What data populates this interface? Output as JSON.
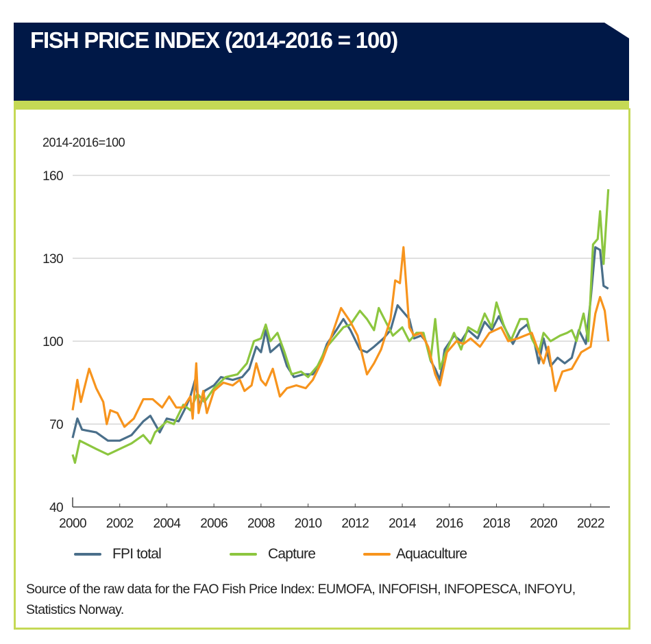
{
  "header": {
    "title": "FISH PRICE INDEX (2014-2016 = 100)"
  },
  "colors": {
    "header_bg": "#001847",
    "accent_green": "#c5d955"
  },
  "chart_data": {
    "type": "line",
    "title": "FISH PRICE INDEX (2014-2016 = 100)",
    "ylabel": "2014-2016=100",
    "xlabel": "",
    "xlim": [
      2000,
      2022.75
    ],
    "ylim": [
      40,
      160
    ],
    "yticks": [
      "160",
      "130",
      "100",
      "70",
      "40"
    ],
    "xticks": [
      "2000",
      "2002",
      "2004",
      "2006",
      "2008",
      "2010",
      "2012",
      "2014",
      "2016",
      "2018",
      "2020",
      "2022"
    ],
    "grid": true,
    "legend": "bottom",
    "series": [
      {
        "name": "FPI total",
        "color": "#4a6f8a",
        "points": [
          [
            2000,
            65
          ],
          [
            2000.2,
            72
          ],
          [
            2000.4,
            68
          ],
          [
            2001,
            67
          ],
          [
            2001.5,
            64
          ],
          [
            2002,
            64
          ],
          [
            2002.5,
            66
          ],
          [
            2003,
            71
          ],
          [
            2003.3,
            73
          ],
          [
            2003.7,
            67
          ],
          [
            2004,
            72
          ],
          [
            2004.5,
            71
          ],
          [
            2004.8,
            76
          ],
          [
            2005,
            80
          ],
          [
            2005.2,
            86
          ],
          [
            2005.4,
            76
          ],
          [
            2005.6,
            82
          ],
          [
            2006,
            84
          ],
          [
            2006.3,
            87
          ],
          [
            2006.8,
            86
          ],
          [
            2007.2,
            87
          ],
          [
            2007.5,
            90
          ],
          [
            2007.8,
            98
          ],
          [
            2008,
            96
          ],
          [
            2008.2,
            104
          ],
          [
            2008.4,
            96
          ],
          [
            2008.8,
            99
          ],
          [
            2009.1,
            91
          ],
          [
            2009.4,
            87
          ],
          [
            2009.8,
            88
          ],
          [
            2010.2,
            88
          ],
          [
            2010.5,
            92
          ],
          [
            2010.8,
            99
          ],
          [
            2011.2,
            104
          ],
          [
            2011.5,
            108
          ],
          [
            2011.8,
            104
          ],
          [
            2012.2,
            97
          ],
          [
            2012.5,
            96
          ],
          [
            2012.8,
            98
          ],
          [
            2013.2,
            101
          ],
          [
            2013.5,
            104
          ],
          [
            2013.8,
            113
          ],
          [
            2014,
            111
          ],
          [
            2014.3,
            108
          ],
          [
            2014.5,
            101
          ],
          [
            2014.8,
            102
          ],
          [
            2015,
            100
          ],
          [
            2015.2,
            93
          ],
          [
            2015.4,
            90
          ],
          [
            2015.6,
            86
          ],
          [
            2015.8,
            97
          ],
          [
            2016.2,
            102
          ],
          [
            2016.5,
            100
          ],
          [
            2016.8,
            104
          ],
          [
            2017.2,
            101
          ],
          [
            2017.5,
            107
          ],
          [
            2017.8,
            104
          ],
          [
            2018.1,
            109
          ],
          [
            2018.4,
            104
          ],
          [
            2018.7,
            99
          ],
          [
            2019,
            104
          ],
          [
            2019.3,
            106
          ],
          [
            2019.6,
            100
          ],
          [
            2019.8,
            92
          ],
          [
            2020,
            101
          ],
          [
            2020.3,
            91
          ],
          [
            2020.6,
            94
          ],
          [
            2020.9,
            92
          ],
          [
            2021.2,
            94
          ],
          [
            2021.5,
            104
          ],
          [
            2021.8,
            99
          ],
          [
            2022,
            115
          ],
          [
            2022.2,
            134
          ],
          [
            2022.4,
            133
          ],
          [
            2022.55,
            120
          ],
          [
            2022.75,
            119
          ]
        ]
      },
      {
        "name": "Capture",
        "color": "#8cc63f",
        "points": [
          [
            2000,
            59
          ],
          [
            2000.1,
            56
          ],
          [
            2000.3,
            64
          ],
          [
            2001,
            61
          ],
          [
            2001.5,
            59
          ],
          [
            2002,
            61
          ],
          [
            2002.5,
            63
          ],
          [
            2003,
            66
          ],
          [
            2003.3,
            63
          ],
          [
            2003.5,
            67
          ],
          [
            2004,
            71
          ],
          [
            2004.3,
            70
          ],
          [
            2004.7,
            77
          ],
          [
            2005,
            75
          ],
          [
            2005.3,
            81
          ],
          [
            2005.6,
            78
          ],
          [
            2006,
            83
          ],
          [
            2006.5,
            87
          ],
          [
            2007,
            88
          ],
          [
            2007.4,
            92
          ],
          [
            2007.7,
            100
          ],
          [
            2008,
            101
          ],
          [
            2008.2,
            106
          ],
          [
            2008.4,
            100
          ],
          [
            2008.7,
            103
          ],
          [
            2009,
            96
          ],
          [
            2009.3,
            88
          ],
          [
            2009.7,
            89
          ],
          [
            2010,
            87
          ],
          [
            2010.4,
            91
          ],
          [
            2010.8,
            98
          ],
          [
            2011.2,
            102
          ],
          [
            2011.5,
            105
          ],
          [
            2011.8,
            106
          ],
          [
            2012.2,
            111
          ],
          [
            2012.5,
            108
          ],
          [
            2012.8,
            104
          ],
          [
            2013,
            112
          ],
          [
            2013.3,
            107
          ],
          [
            2013.6,
            102
          ],
          [
            2014,
            105
          ],
          [
            2014.3,
            100
          ],
          [
            2014.6,
            103
          ],
          [
            2014.9,
            103
          ],
          [
            2015.2,
            93
          ],
          [
            2015.4,
            108
          ],
          [
            2015.6,
            90
          ],
          [
            2015.8,
            95
          ],
          [
            2016.2,
            103
          ],
          [
            2016.5,
            97
          ],
          [
            2016.8,
            105
          ],
          [
            2017.2,
            103
          ],
          [
            2017.5,
            110
          ],
          [
            2017.8,
            105
          ],
          [
            2018,
            114
          ],
          [
            2018.3,
            106
          ],
          [
            2018.6,
            100
          ],
          [
            2019,
            108
          ],
          [
            2019.3,
            108
          ],
          [
            2019.5,
            101
          ],
          [
            2019.8,
            96
          ],
          [
            2020,
            103
          ],
          [
            2020.3,
            100
          ],
          [
            2020.7,
            102
          ],
          [
            2021,
            103
          ],
          [
            2021.2,
            104
          ],
          [
            2021.4,
            100
          ],
          [
            2021.7,
            110
          ],
          [
            2021.9,
            100
          ],
          [
            2022.1,
            135
          ],
          [
            2022.3,
            137
          ],
          [
            2022.4,
            147
          ],
          [
            2022.55,
            128
          ],
          [
            2022.75,
            155
          ]
        ]
      },
      {
        "name": "Aquaculture",
        "color": "#f7941d",
        "points": [
          [
            2000,
            75
          ],
          [
            2000.2,
            86
          ],
          [
            2000.35,
            78
          ],
          [
            2000.7,
            90
          ],
          [
            2001,
            83
          ],
          [
            2001.3,
            78
          ],
          [
            2001.45,
            70
          ],
          [
            2001.6,
            75
          ],
          [
            2001.9,
            74
          ],
          [
            2002.2,
            69
          ],
          [
            2002.6,
            72
          ],
          [
            2003,
            79
          ],
          [
            2003.4,
            79
          ],
          [
            2003.8,
            76
          ],
          [
            2004.1,
            80
          ],
          [
            2004.4,
            76
          ],
          [
            2004.7,
            76
          ],
          [
            2005,
            80
          ],
          [
            2005.1,
            72
          ],
          [
            2005.25,
            92
          ],
          [
            2005.35,
            74
          ],
          [
            2005.55,
            82
          ],
          [
            2005.7,
            74
          ],
          [
            2006,
            82
          ],
          [
            2006.4,
            85
          ],
          [
            2006.8,
            84
          ],
          [
            2007.1,
            86
          ],
          [
            2007.3,
            82
          ],
          [
            2007.6,
            84
          ],
          [
            2007.8,
            92
          ],
          [
            2008,
            86
          ],
          [
            2008.2,
            84
          ],
          [
            2008.5,
            90
          ],
          [
            2008.8,
            80
          ],
          [
            2009.1,
            83
          ],
          [
            2009.5,
            84
          ],
          [
            2009.9,
            83
          ],
          [
            2010.2,
            86
          ],
          [
            2010.6,
            93
          ],
          [
            2011,
            102
          ],
          [
            2011.4,
            112
          ],
          [
            2011.8,
            107
          ],
          [
            2012.1,
            102
          ],
          [
            2012.5,
            88
          ],
          [
            2012.8,
            92
          ],
          [
            2013.1,
            97
          ],
          [
            2013.5,
            108
          ],
          [
            2013.7,
            122
          ],
          [
            2013.9,
            121
          ],
          [
            2014.05,
            134
          ],
          [
            2014.3,
            105
          ],
          [
            2014.5,
            102
          ],
          [
            2014.8,
            103
          ],
          [
            2015.1,
            98
          ],
          [
            2015.4,
            88
          ],
          [
            2015.6,
            84
          ],
          [
            2015.9,
            96
          ],
          [
            2016.3,
            100
          ],
          [
            2016.6,
            99
          ],
          [
            2016.9,
            101
          ],
          [
            2017.3,
            98
          ],
          [
            2017.7,
            103
          ],
          [
            2018.2,
            105
          ],
          [
            2018.5,
            100
          ],
          [
            2018.9,
            101
          ],
          [
            2019.2,
            102
          ],
          [
            2019.5,
            103
          ],
          [
            2019.8,
            96
          ],
          [
            2020,
            92
          ],
          [
            2020.2,
            98
          ],
          [
            2020.5,
            82
          ],
          [
            2020.8,
            89
          ],
          [
            2021.2,
            90
          ],
          [
            2021.6,
            96
          ],
          [
            2022,
            98
          ],
          [
            2022.2,
            110
          ],
          [
            2022.4,
            116
          ],
          [
            2022.6,
            111
          ],
          [
            2022.75,
            100
          ]
        ]
      }
    ],
    "source": "Source of the raw data for the FAO Fish Price Index: EUMOFA, INFOFISH, INFOPESCA, INFOYU, Statistics Norway."
  }
}
